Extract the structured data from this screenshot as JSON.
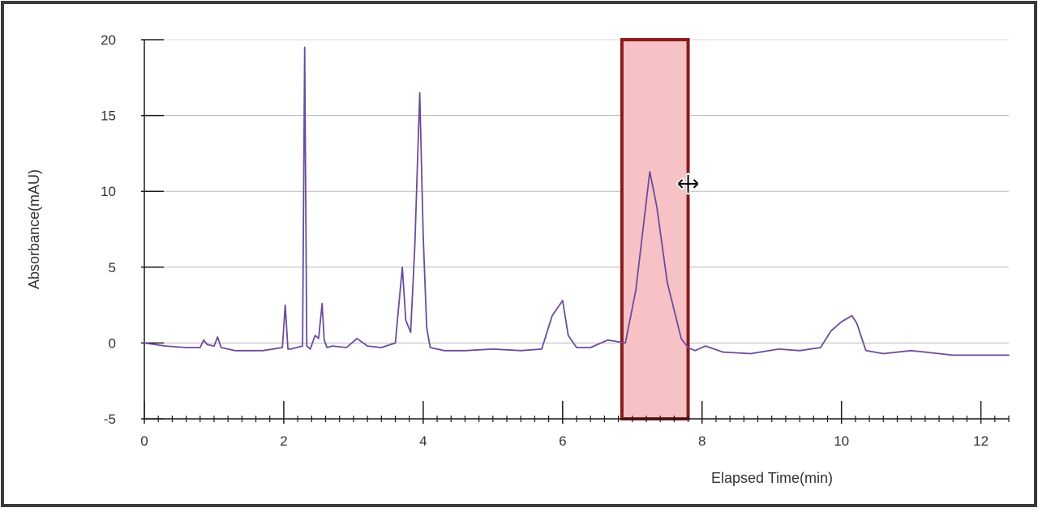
{
  "chart_data": {
    "type": "line",
    "xlabel": "Elapsed Time(min)",
    "ylabel": "Absorbance(mAU)",
    "xlim": [
      0,
      12.4
    ],
    "ylim": [
      -5,
      20
    ],
    "x_ticks": [
      0,
      2,
      4,
      6,
      8,
      10,
      12
    ],
    "y_ticks": [
      -5,
      0,
      5,
      10,
      15,
      20
    ],
    "grid": "horizontal",
    "x_minor_tick_step": 0.2,
    "series": [
      {
        "color": "#6a4c9c",
        "x": [
          0,
          0.3,
          0.6,
          0.8,
          0.85,
          0.9,
          1.0,
          1.05,
          1.1,
          1.3,
          1.7,
          1.98,
          2.02,
          2.06,
          2.1,
          2.27,
          2.3,
          2.33,
          2.38,
          2.45,
          2.5,
          2.55,
          2.58,
          2.62,
          2.7,
          2.9,
          3.05,
          3.2,
          3.4,
          3.6,
          3.7,
          3.75,
          3.82,
          3.88,
          3.95,
          4.0,
          4.05,
          4.1,
          4.3,
          4.6,
          5.0,
          5.4,
          5.7,
          5.85,
          6.0,
          6.08,
          6.2,
          6.4,
          6.65,
          6.9,
          7.05,
          7.25,
          7.35,
          7.5,
          7.7,
          7.8,
          7.9,
          8.05,
          8.3,
          8.7,
          9.1,
          9.4,
          9.7,
          9.85,
          10.0,
          10.15,
          10.22,
          10.35,
          10.6,
          11.0,
          11.2,
          11.6,
          12.0,
          12.4
        ],
        "y": [
          0,
          -0.2,
          -0.3,
          -0.3,
          0.2,
          -0.1,
          -0.2,
          0.4,
          -0.3,
          -0.5,
          -0.5,
          -0.3,
          2.5,
          -0.4,
          -0.4,
          -0.2,
          19.5,
          -0.2,
          -0.4,
          0.5,
          0.3,
          2.6,
          0.2,
          -0.3,
          -0.2,
          -0.3,
          0.3,
          -0.2,
          -0.3,
          0.0,
          5.0,
          1.5,
          0.7,
          6.5,
          16.5,
          7.0,
          1.0,
          -0.3,
          -0.5,
          -0.5,
          -0.4,
          -0.5,
          -0.4,
          1.8,
          2.8,
          0.5,
          -0.3,
          -0.3,
          0.2,
          0.0,
          3.5,
          11.3,
          9.0,
          4.0,
          0.3,
          -0.3,
          -0.5,
          -0.2,
          -0.6,
          -0.7,
          -0.4,
          -0.5,
          -0.3,
          0.8,
          1.4,
          1.8,
          1.3,
          -0.5,
          -0.7,
          -0.5,
          -0.6,
          -0.8,
          -0.8,
          -0.8
        ]
      }
    ],
    "highlight": {
      "x_start": 6.85,
      "x_end": 7.8,
      "y_start": -5,
      "y_end": 20,
      "fill": "#f6c2c6",
      "stroke": "#8b1a1a"
    },
    "cursor": {
      "x": 7.8,
      "y": 10.5,
      "icon": "move-horizontal-cursor-icon"
    }
  }
}
